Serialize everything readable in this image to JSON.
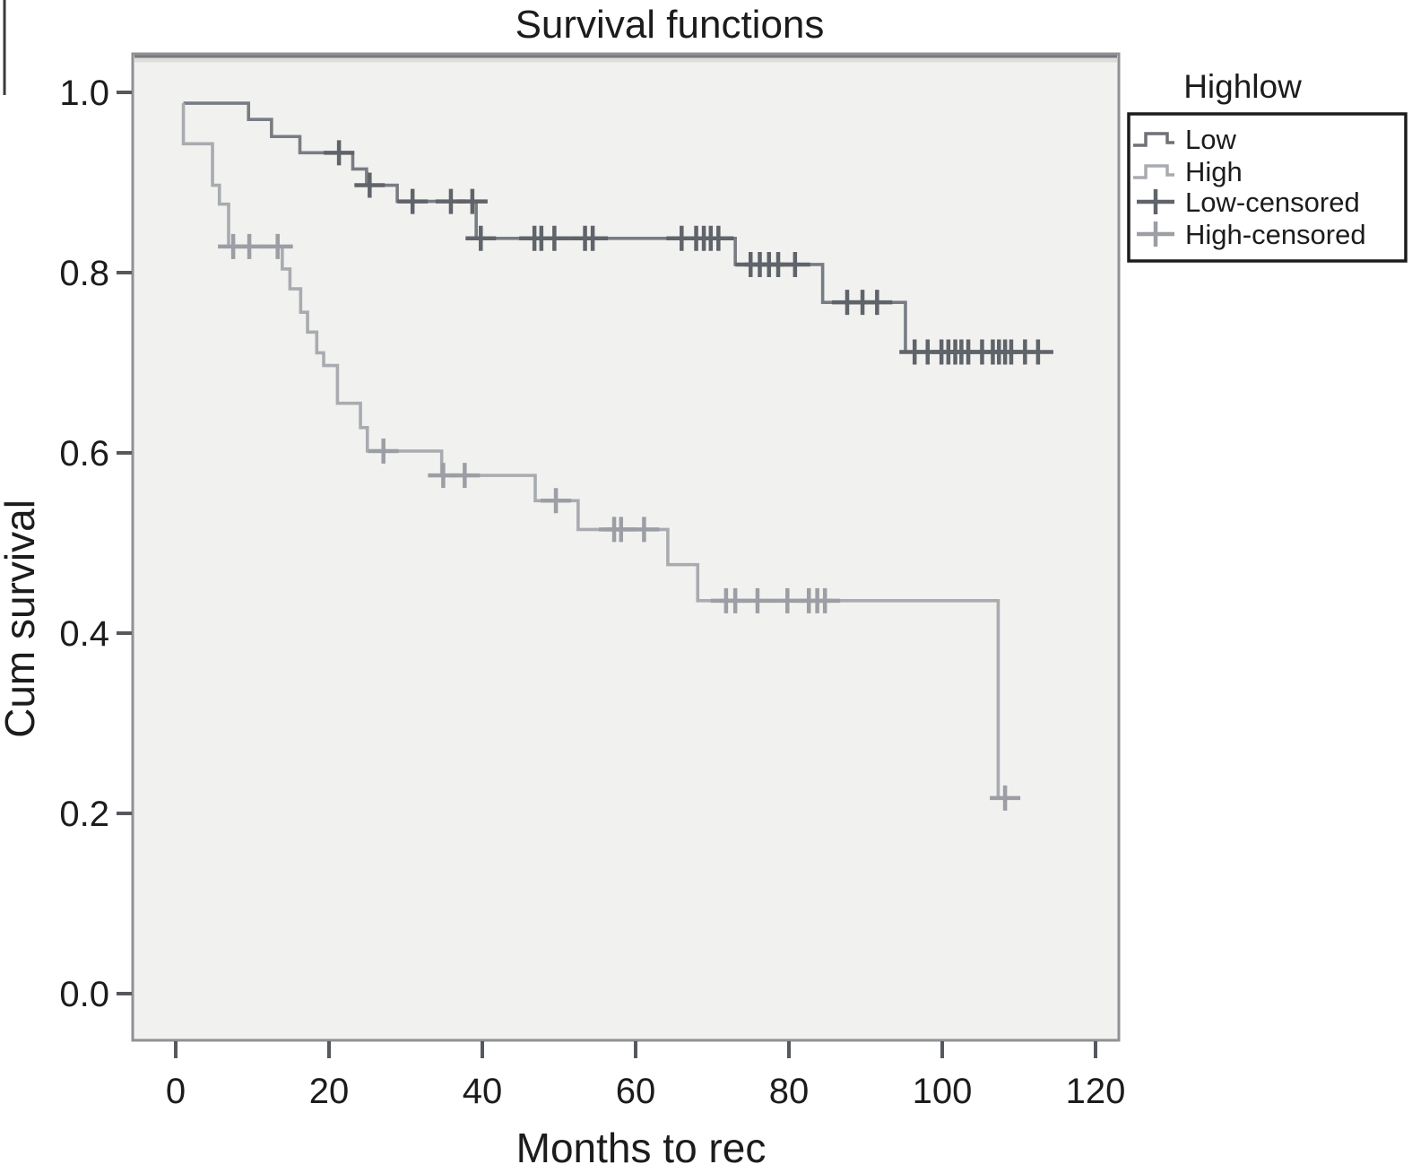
{
  "chart_data": {
    "type": "line",
    "subtype": "kaplan-meier-step",
    "title": "Survival functions",
    "xlabel": "Months to rec",
    "ylabel": "Cum survival",
    "xlim": [
      0,
      120
    ],
    "ylim": [
      0.0,
      1.0
    ],
    "grid": false,
    "plot_background": "#f1f1ef",
    "frame_color": "#8f9194",
    "x_ticks": [
      0,
      20,
      40,
      60,
      80,
      100,
      120
    ],
    "x_tick_labels": [
      "0",
      "20",
      "40",
      "60",
      "80",
      "100",
      "120"
    ],
    "y_ticks": [
      1.0,
      0.8,
      0.6,
      0.4,
      0.2,
      0.0
    ],
    "y_tick_labels": [
      "1.0",
      "0.8",
      "0.6",
      "0.4",
      "0.2",
      "0.0"
    ],
    "series": [
      {
        "name": "Low",
        "color": "#787c83",
        "censor_color": "#5f636a",
        "start": [
          1,
          0.988
        ],
        "steps": [
          [
            9.5,
            0.97
          ],
          [
            12.5,
            0.951
          ],
          [
            16.2,
            0.933
          ],
          [
            23.1,
            0.915
          ],
          [
            24.9,
            0.897
          ],
          [
            28.9,
            0.879
          ],
          [
            39.2,
            0.838
          ],
          [
            73.0,
            0.809
          ],
          [
            84.4,
            0.767
          ],
          [
            95.2,
            0.712
          ]
        ],
        "end_x": 114,
        "censors": [
          [
            21.3,
            0.933
          ],
          [
            25.3,
            0.897
          ],
          [
            30.9,
            0.879
          ],
          [
            35.9,
            0.879
          ],
          [
            38.7,
            0.879
          ],
          [
            39.8,
            0.838
          ],
          [
            46.8,
            0.838
          ],
          [
            47.7,
            0.838
          ],
          [
            49.4,
            0.838
          ],
          [
            53.4,
            0.838
          ],
          [
            54.4,
            0.838
          ],
          [
            66.0,
            0.838
          ],
          [
            67.9,
            0.838
          ],
          [
            68.9,
            0.838
          ],
          [
            69.8,
            0.838
          ],
          [
            70.8,
            0.838
          ],
          [
            75.0,
            0.809
          ],
          [
            76.2,
            0.809
          ],
          [
            77.4,
            0.809
          ],
          [
            78.6,
            0.809
          ],
          [
            80.8,
            0.809
          ],
          [
            87.6,
            0.767
          ],
          [
            89.6,
            0.767
          ],
          [
            91.5,
            0.767
          ],
          [
            96.4,
            0.712
          ],
          [
            98.1,
            0.712
          ],
          [
            99.9,
            0.712
          ],
          [
            100.8,
            0.712
          ],
          [
            101.7,
            0.712
          ],
          [
            102.5,
            0.712
          ],
          [
            103.4,
            0.712
          ],
          [
            105.2,
            0.712
          ],
          [
            106.6,
            0.712
          ],
          [
            107.4,
            0.712
          ],
          [
            108.2,
            0.712
          ],
          [
            109.0,
            0.712
          ],
          [
            110.8,
            0.712
          ],
          [
            112.5,
            0.712
          ]
        ]
      },
      {
        "name": "High",
        "color": "#a8abb0",
        "censor_color": "#9b9ea4",
        "start": [
          1,
          0.988
        ],
        "steps": [
          [
            1.0,
            0.943
          ],
          [
            4.8,
            0.897
          ],
          [
            5.7,
            0.876
          ],
          [
            6.9,
            0.829
          ],
          [
            13.9,
            0.804
          ],
          [
            14.9,
            0.782
          ],
          [
            16.3,
            0.756
          ],
          [
            17.2,
            0.734
          ],
          [
            18.4,
            0.711
          ],
          [
            19.3,
            0.697
          ],
          [
            21.1,
            0.655
          ],
          [
            24.1,
            0.628
          ],
          [
            25.0,
            0.602
          ],
          [
            34.7,
            0.575
          ],
          [
            46.9,
            0.547
          ],
          [
            52.5,
            0.515
          ],
          [
            64.2,
            0.476
          ],
          [
            68.1,
            0.436
          ],
          [
            107.3,
            0.217
          ]
        ],
        "end_x": 109.5,
        "censors": [
          [
            7.5,
            0.829
          ],
          [
            9.6,
            0.829
          ],
          [
            13.3,
            0.829
          ],
          [
            27.1,
            0.602
          ],
          [
            34.9,
            0.575
          ],
          [
            37.7,
            0.575
          ],
          [
            49.6,
            0.547
          ],
          [
            57.2,
            0.515
          ],
          [
            58.1,
            0.515
          ],
          [
            61.1,
            0.515
          ],
          [
            71.8,
            0.436
          ],
          [
            73.0,
            0.436
          ],
          [
            75.9,
            0.436
          ],
          [
            79.8,
            0.436
          ],
          [
            82.6,
            0.436
          ],
          [
            83.7,
            0.436
          ],
          [
            84.7,
            0.436
          ],
          [
            108.2,
            0.217
          ]
        ]
      }
    ],
    "legend": {
      "title": "Highlow",
      "position": "right-top-outside",
      "items": [
        {
          "label": "Low",
          "symbol": "step",
          "color": "#6e7177"
        },
        {
          "label": "High",
          "symbol": "step",
          "color": "#a8abb0"
        },
        {
          "label": "Low-censored",
          "symbol": "plus",
          "color": "#5f636a"
        },
        {
          "label": "High-censored",
          "symbol": "plus",
          "color": "#9b9ea4"
        }
      ]
    }
  }
}
